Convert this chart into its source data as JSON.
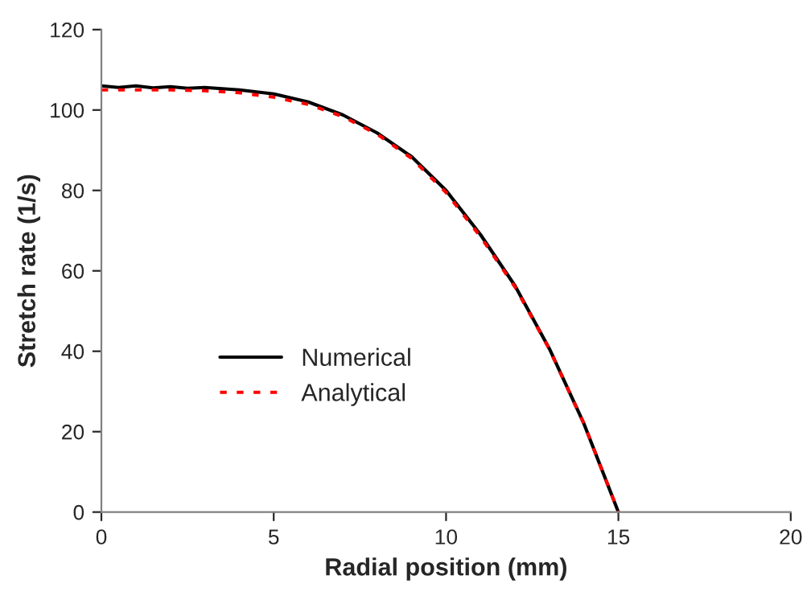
{
  "chart_data": {
    "type": "line",
    "xlabel": "Radial position (mm)",
    "ylabel": "Stretch rate (1/s)",
    "xlim": [
      0,
      20
    ],
    "xticks": [
      0,
      5,
      10,
      15,
      20
    ],
    "ylim": [
      0,
      120
    ],
    "yticks": [
      0,
      20,
      40,
      60,
      80,
      100,
      120
    ],
    "grid": false,
    "legend": "left",
    "marker": "none",
    "series": [
      {
        "name": "Numerical",
        "color": "#000000",
        "line_style": "solid",
        "x": [
          0,
          0.5,
          1,
          1.5,
          2,
          2.5,
          3,
          4,
          5,
          6,
          7,
          8,
          9,
          10,
          11,
          12,
          13,
          14,
          15
        ],
        "values": [
          106,
          105.6,
          106,
          105.5,
          105.8,
          105.4,
          105.6,
          105,
          104,
          102,
          98.8,
          94.3,
          88.4,
          80,
          69,
          56.3,
          40.6,
          22,
          0
        ]
      },
      {
        "name": "Analytical",
        "color": "#ff0000",
        "line_style": "dotted",
        "x": [
          0,
          1,
          2,
          3,
          4,
          5,
          6,
          7,
          8,
          9,
          10,
          11,
          12,
          13,
          14,
          15
        ],
        "values": [
          105,
          105,
          105,
          104.8,
          104.3,
          103.2,
          101.4,
          98.4,
          94,
          88,
          79.5,
          68.5,
          56,
          40.5,
          22,
          0
        ]
      }
    ]
  }
}
